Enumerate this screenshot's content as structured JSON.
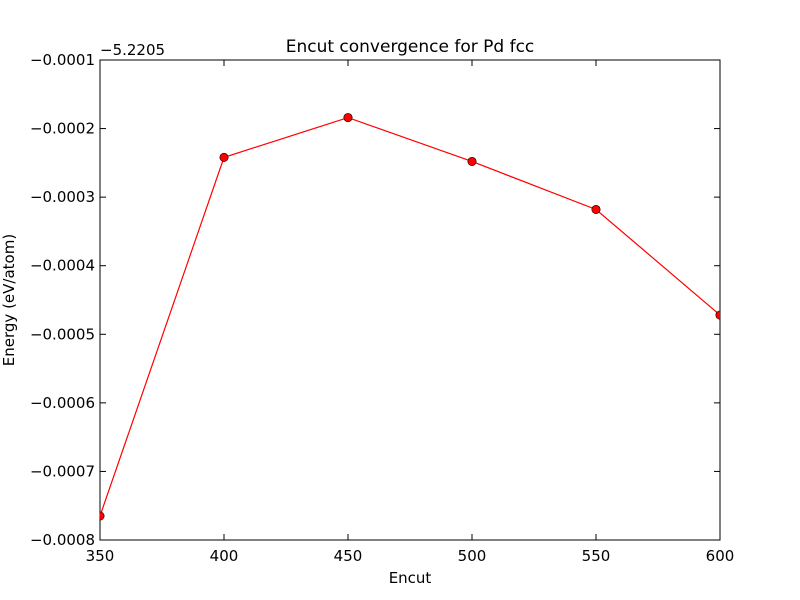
{
  "chart_data": {
    "type": "line",
    "title": "Encut convergence for Pd fcc",
    "xlabel": "Encut",
    "ylabel": "Energy (eV/atom)",
    "y_offset_text": "−5.2205",
    "x": [
      350,
      400,
      450,
      500,
      550,
      600
    ],
    "series": [
      {
        "values": [
          -0.000765,
          -0.000242,
          -0.000184,
          -0.000248,
          -0.000318,
          -0.000472
        ],
        "color": "#ff0000",
        "marker": "circle"
      }
    ],
    "xlim": [
      350,
      600
    ],
    "ylim": [
      -0.0008,
      -0.0001
    ],
    "xticks": [
      350,
      400,
      450,
      500,
      550,
      600
    ],
    "xtick_labels": [
      "350",
      "400",
      "450",
      "500",
      "550",
      "600"
    ],
    "yticks": [
      -0.0008,
      -0.0007,
      -0.0006,
      -0.0005,
      -0.0004,
      -0.0003,
      -0.0002,
      -0.0001
    ],
    "ytick_labels": [
      "−0.0008",
      "−0.0007",
      "−0.0006",
      "−0.0005",
      "−0.0004",
      "−0.0003",
      "−0.0002",
      "−0.0001"
    ],
    "grid": false,
    "legend": "none"
  }
}
